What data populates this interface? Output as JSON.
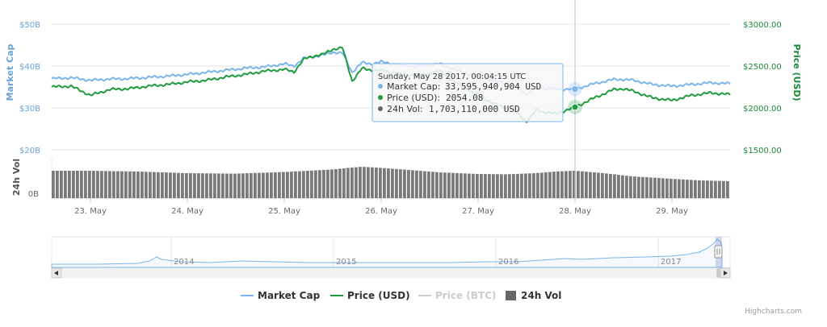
{
  "chart_data": {
    "type": "line",
    "left_axis": {
      "title": "Market Cap",
      "ticks": [
        "$50B",
        "$40B",
        "$30B",
        "$20B"
      ],
      "tick_values": [
        50,
        40,
        30,
        20
      ],
      "range": [
        20,
        50
      ],
      "unit": "USD billions",
      "color": "#6aa2d8"
    },
    "right_axis": {
      "title": "Price (USD)",
      "ticks": [
        "$3000.00",
        "$2500.00",
        "$2000.00",
        "$1500.00"
      ],
      "tick_values": [
        3000,
        2500,
        2000,
        1500
      ],
      "range": [
        1500,
        3000
      ],
      "color": "#1a8a3a"
    },
    "volume_axis": {
      "title": "24h Vol",
      "ticks": [
        "0B"
      ],
      "color": "#555555"
    },
    "x_axis": {
      "ticks": [
        "23. May",
        "24. May",
        "25. May",
        "26. May",
        "27. May",
        "28. May",
        "29. May"
      ],
      "tick_values": [
        23,
        24,
        25,
        26,
        27,
        28,
        29
      ],
      "range": [
        22.6,
        29.6
      ]
    },
    "crosshair_x": 28.0,
    "series": [
      {
        "name": "Market Cap",
        "color": "#7cb5ec",
        "x": [
          22.6,
          22.8,
          23.0,
          23.2,
          23.4,
          23.6,
          23.8,
          24.0,
          24.2,
          24.4,
          24.6,
          24.8,
          25.0,
          25.1,
          25.2,
          25.3,
          25.4,
          25.5,
          25.6,
          25.7,
          25.8,
          25.9,
          26.0,
          26.2,
          26.4,
          26.6,
          26.8,
          27.0,
          27.2,
          27.35,
          27.5,
          27.6,
          27.8,
          28.0,
          28.2,
          28.4,
          28.5,
          28.6,
          28.8,
          29.0,
          29.2,
          29.4,
          29.6
        ],
        "values": [
          37.0,
          37.2,
          36.6,
          36.9,
          37.0,
          37.3,
          37.6,
          38.0,
          38.5,
          39.0,
          39.5,
          39.8,
          40.5,
          40.0,
          41.8,
          42.2,
          42.6,
          43.3,
          43.1,
          38.5,
          40.8,
          40.5,
          41.0,
          40.2,
          40.0,
          40.5,
          38.8,
          37.5,
          36.3,
          35.5,
          33.3,
          34.8,
          34.5,
          34.5,
          35.8,
          36.8,
          36.8,
          36.6,
          35.6,
          35.2,
          35.6,
          36.0,
          35.8
        ]
      },
      {
        "name": "Price (USD)",
        "color": "#1f9c3f",
        "x": [
          22.6,
          22.8,
          23.0,
          23.2,
          23.4,
          23.6,
          23.8,
          24.0,
          24.2,
          24.4,
          24.6,
          24.8,
          25.0,
          25.1,
          25.2,
          25.3,
          25.4,
          25.5,
          25.6,
          25.7,
          25.8,
          25.9,
          26.0,
          26.2,
          26.4,
          26.6,
          26.8,
          27.0,
          27.2,
          27.35,
          27.5,
          27.6,
          27.8,
          28.0,
          28.2,
          28.4,
          28.5,
          28.6,
          28.8,
          29.0,
          29.2,
          29.4,
          29.6
        ],
        "values": [
          2250,
          2260,
          2150,
          2220,
          2230,
          2260,
          2280,
          2310,
          2330,
          2370,
          2400,
          2440,
          2460,
          2430,
          2580,
          2620,
          2640,
          2700,
          2720,
          2320,
          2470,
          2450,
          2450,
          2400,
          2390,
          2440,
          2280,
          2150,
          2030,
          1980,
          1840,
          1970,
          1930,
          2010,
          2120,
          2220,
          2230,
          2200,
          2120,
          2090,
          2150,
          2180,
          2160
        ]
      },
      {
        "name": "Price (BTC)",
        "color": "#cccccc",
        "visible": false
      },
      {
        "name": "24h Vol",
        "color": "#777777",
        "x": [
          22.6,
          23.0,
          23.5,
          24.0,
          24.5,
          25.0,
          25.5,
          25.8,
          26.0,
          26.3,
          26.6,
          27.0,
          27.3,
          27.6,
          27.8,
          28.0,
          28.3,
          28.6,
          29.0,
          29.3,
          29.6
        ],
        "values": [
          1.7,
          1.7,
          1.65,
          1.55,
          1.52,
          1.62,
          1.78,
          1.95,
          1.88,
          1.75,
          1.6,
          1.5,
          1.48,
          1.55,
          1.65,
          1.7,
          1.55,
          1.35,
          1.2,
          1.1,
          1.05
        ],
        "unit": "USD billions"
      }
    ],
    "navigator": {
      "ticks": [
        "2014",
        "2015",
        "2016",
        "2017"
      ]
    },
    "legend": {
      "placement": "bottom-center",
      "items": [
        {
          "label": "Market Cap",
          "color": "#7cb5ec",
          "symbol": "line",
          "active": true
        },
        {
          "label": "Price (USD)",
          "color": "#1f9c3f",
          "symbol": "line",
          "active": true
        },
        {
          "label": "Price (BTC)",
          "color": "#cccccc",
          "symbol": "line",
          "active": false
        },
        {
          "label": "24h Vol",
          "color": "#666666",
          "symbol": "square",
          "active": true
        }
      ]
    },
    "tooltip": {
      "date": "Sunday, May 28 2017, 00:04:15 UTC",
      "rows": [
        {
          "label": "Market Cap:",
          "value": "33,595,940,904 USD",
          "color": "#7cb5ec"
        },
        {
          "label": "Price (USD):",
          "value": "2054.08",
          "color": "#1f9c3f"
        },
        {
          "label": "24h Vol:",
          "value": "1,703,110,000 USD",
          "color": "#666666"
        }
      ]
    },
    "grid": true,
    "credits": "Highcharts.com"
  }
}
